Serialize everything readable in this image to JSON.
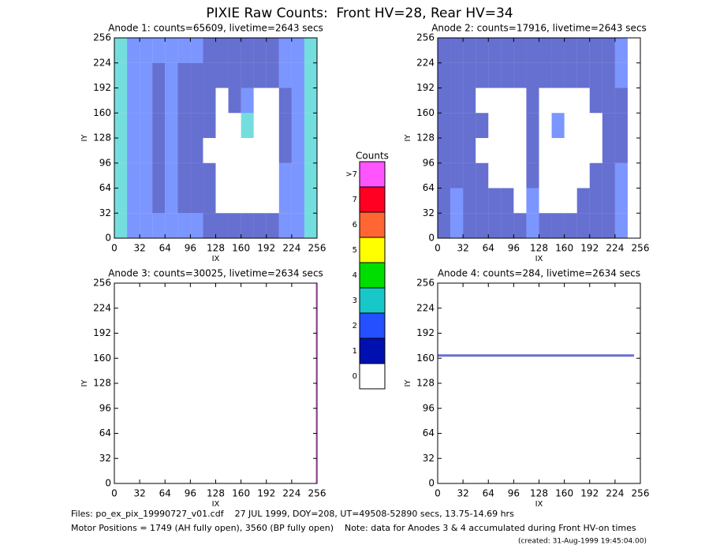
{
  "title": "PIXIE Raw Counts:  Front HV=28, Rear HV=34",
  "chart_data": [
    {
      "type": "heatmap",
      "title": "Anode 1: counts=65609, livetime=2643 secs",
      "xlabel": "IX",
      "ylabel": "IY",
      "xlim": [
        0,
        256
      ],
      "ylim": [
        0,
        256
      ],
      "xticks": [
        0,
        32,
        64,
        96,
        128,
        160,
        192,
        224,
        256
      ],
      "yticks": [
        0,
        32,
        64,
        96,
        128,
        160,
        192,
        224,
        256
      ],
      "xbins": [
        0,
        16,
        32,
        48,
        64,
        80,
        96,
        112,
        128,
        144,
        160,
        176,
        192,
        208,
        224,
        240,
        256
      ],
      "ybins": [
        0,
        32,
        64,
        96,
        128,
        160,
        192,
        224,
        256
      ],
      "levels": [
        [
          3,
          2,
          2,
          2,
          2,
          2,
          2,
          1,
          1,
          1,
          1,
          1,
          1,
          2,
          2,
          3
        ],
        [
          3,
          2,
          2,
          1,
          2,
          1,
          1,
          1,
          0,
          0,
          0,
          0,
          0,
          2,
          2,
          3
        ],
        [
          3,
          2,
          2,
          1,
          2,
          1,
          1,
          1,
          0,
          0,
          0,
          0,
          0,
          2,
          2,
          3
        ],
        [
          3,
          2,
          2,
          1,
          2,
          1,
          1,
          0,
          0,
          0,
          0,
          0,
          0,
          1,
          2,
          3
        ],
        [
          3,
          2,
          2,
          1,
          2,
          1,
          1,
          1,
          0,
          0,
          3,
          0,
          0,
          1,
          2,
          3
        ],
        [
          3,
          2,
          2,
          1,
          2,
          1,
          1,
          1,
          0,
          1,
          2,
          0,
          0,
          1,
          2,
          3
        ],
        [
          3,
          2,
          2,
          1,
          2,
          1,
          1,
          1,
          1,
          1,
          1,
          1,
          1,
          2,
          2,
          3
        ],
        [
          3,
          2,
          2,
          2,
          2,
          2,
          2,
          1,
          1,
          1,
          1,
          1,
          1,
          2,
          2,
          3
        ]
      ]
    },
    {
      "type": "heatmap",
      "title": "Anode 2: counts=17916, livetime=2643 secs",
      "xlabel": "IX",
      "ylabel": "IY",
      "xlim": [
        0,
        256
      ],
      "ylim": [
        0,
        256
      ],
      "xticks": [
        0,
        32,
        64,
        96,
        128,
        160,
        192,
        224,
        256
      ],
      "yticks": [
        0,
        32,
        64,
        96,
        128,
        160,
        192,
        224,
        256
      ],
      "xbins": [
        0,
        16,
        32,
        48,
        64,
        80,
        96,
        112,
        128,
        144,
        160,
        176,
        192,
        208,
        224,
        240,
        256
      ],
      "ybins": [
        0,
        32,
        64,
        96,
        128,
        160,
        192,
        224,
        256
      ],
      "levels": [
        [
          1,
          2,
          1,
          1,
          1,
          1,
          1,
          2,
          1,
          1,
          1,
          1,
          1,
          1,
          2,
          0
        ],
        [
          1,
          2,
          1,
          1,
          1,
          1,
          0,
          2,
          0,
          0,
          0,
          1,
          1,
          1,
          2,
          0
        ],
        [
          1,
          1,
          1,
          1,
          0,
          0,
          0,
          1,
          0,
          0,
          0,
          0,
          1,
          1,
          2,
          0
        ],
        [
          1,
          1,
          1,
          0,
          0,
          0,
          0,
          1,
          0,
          0,
          0,
          0,
          0,
          1,
          1,
          0
        ],
        [
          1,
          1,
          1,
          1,
          0,
          0,
          0,
          1,
          0,
          2,
          0,
          0,
          0,
          1,
          1,
          0
        ],
        [
          1,
          1,
          1,
          0,
          0,
          0,
          0,
          1,
          0,
          0,
          0,
          0,
          1,
          1,
          1,
          0
        ],
        [
          1,
          1,
          1,
          1,
          1,
          1,
          1,
          1,
          1,
          1,
          1,
          1,
          1,
          1,
          2,
          0
        ],
        [
          1,
          1,
          1,
          1,
          1,
          1,
          1,
          1,
          1,
          1,
          1,
          1,
          1,
          1,
          2,
          0
        ]
      ]
    },
    {
      "type": "heatmap",
      "title": "Anode 3: counts=30025, livetime=2634 secs",
      "xlabel": "IX",
      "ylabel": "IY",
      "xlim": [
        0,
        256
      ],
      "ylim": [
        0,
        256
      ],
      "xticks": [
        0,
        32,
        64,
        96,
        128,
        160,
        192,
        224,
        256
      ],
      "yticks": [
        0,
        32,
        64,
        96,
        128,
        160,
        192,
        224,
        256
      ],
      "xbins": [
        0,
        254,
        256
      ],
      "ybins": [
        0,
        256
      ],
      "levels": [
        [
          0,
          8
        ]
      ]
    },
    {
      "type": "heatmap",
      "title": "Anode 4: counts=284, livetime=2634 secs",
      "xlabel": "IX",
      "ylabel": "IY",
      "xlim": [
        0,
        256
      ],
      "ylim": [
        0,
        256
      ],
      "xticks": [
        0,
        32,
        64,
        96,
        128,
        160,
        192,
        224,
        256
      ],
      "yticks": [
        0,
        32,
        64,
        96,
        128,
        160,
        192,
        224,
        256
      ],
      "xbins": [
        0,
        248,
        256
      ],
      "ybins": [
        0,
        162,
        165,
        256
      ],
      "levels": [
        [
          0,
          0
        ],
        [
          1,
          0
        ],
        [
          0,
          0
        ]
      ]
    }
  ],
  "colorbar": {
    "title": "Counts",
    "ticks": [
      0,
      1,
      2,
      3,
      4,
      5,
      6,
      7,
      {
        "value": 8,
        "label": ">7"
      }
    ],
    "colors": [
      "#ffffff",
      "#0010b0",
      "#2450ff",
      "#18c8c8",
      "#00dd00",
      "#ffff00",
      "#ff6633",
      "#ff0022",
      "#ff55ff"
    ]
  },
  "footer": [
    "Files: po_ex_pix_19990727_v01.cdf    27 JUL 1999, DOY=208, UT=49508-52890 secs, 13.75-14.69 hrs",
    "Motor Positions = 1749 (AH fully open), 3560 (BP fully open)    Note: data for Anodes 3 & 4 accumulated during Front HV-on times",
    "(created: 31-Aug-1999 19:45:04.00)"
  ]
}
